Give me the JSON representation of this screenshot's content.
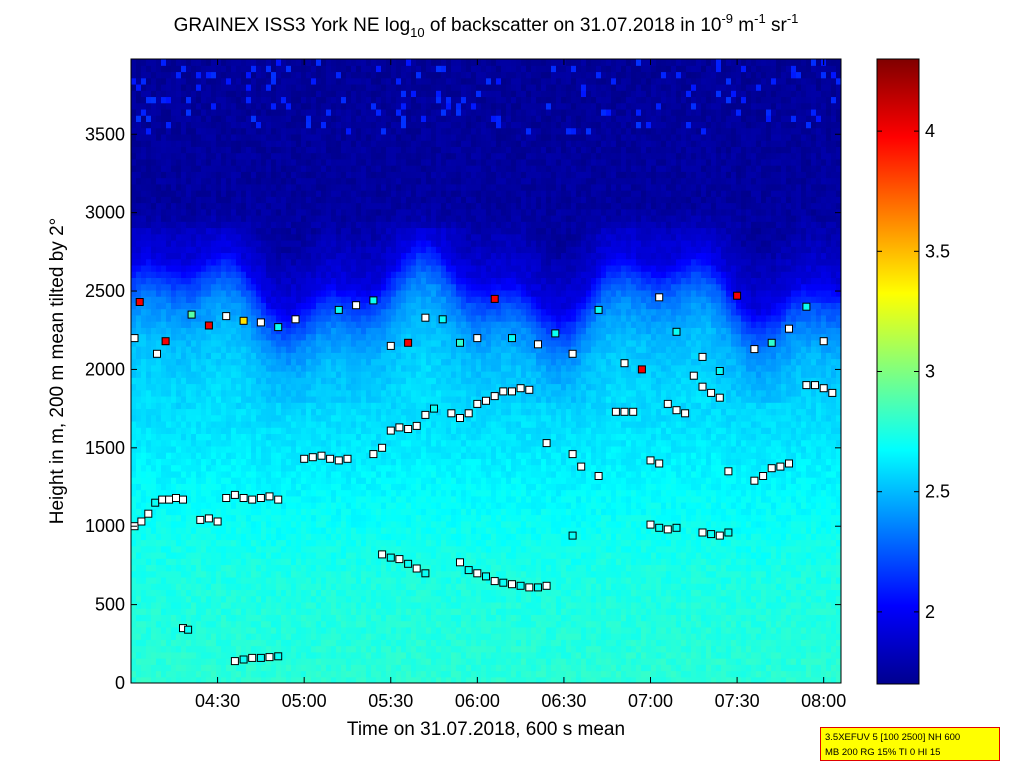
{
  "chart_data": {
    "type": "heatmap",
    "title": {
      "prefix": "GRAINEX ISS3 York NE log",
      "log_base": "10",
      "middle": " of backscatter on 31.07.2018 in 10",
      "exp1": "-9",
      "unit_m": " m",
      "exp2": "-1",
      "unit_sr": " sr",
      "exp3": "-1"
    },
    "xlabel": "Time on 31.07.2018, 600 s mean",
    "ylabel": "Height in m, 200 m mean tilted by 2°",
    "x_axis": {
      "range_hours": [
        4.0,
        8.1
      ],
      "ticks": [
        {
          "value": 4.5,
          "label": "04:30"
        },
        {
          "value": 5.0,
          "label": "05:00"
        },
        {
          "value": 5.5,
          "label": "05:30"
        },
        {
          "value": 6.0,
          "label": "06:00"
        },
        {
          "value": 6.5,
          "label": "06:30"
        },
        {
          "value": 7.0,
          "label": "07:00"
        },
        {
          "value": 7.5,
          "label": "07:30"
        },
        {
          "value": 8.0,
          "label": "08:00"
        }
      ]
    },
    "y_axis": {
      "range": [
        0,
        3980
      ],
      "ticks": [
        {
          "value": 0,
          "label": "0"
        },
        {
          "value": 500,
          "label": "500"
        },
        {
          "value": 1000,
          "label": "1000"
        },
        {
          "value": 1500,
          "label": "1500"
        },
        {
          "value": 2000,
          "label": "2000"
        },
        {
          "value": 2500,
          "label": "2500"
        },
        {
          "value": 3000,
          "label": "3000"
        },
        {
          "value": 3500,
          "label": "3500"
        }
      ]
    },
    "colorbar": {
      "range": [
        1.7,
        4.3
      ],
      "colormap": "jet",
      "ticks": [
        {
          "value": 2.0,
          "label": "2"
        },
        {
          "value": 2.5,
          "label": "2.5"
        },
        {
          "value": 3.0,
          "label": "3"
        },
        {
          "value": 3.5,
          "label": "3.5"
        },
        {
          "value": 4.0,
          "label": "4"
        }
      ]
    },
    "field_profile": {
      "heights_m": [
        0,
        300,
        700,
        1000,
        1400,
        1800,
        2100,
        2300,
        2450,
        2600,
        3000,
        3980
      ],
      "log_backscatter": [
        2.78,
        2.76,
        2.74,
        2.7,
        2.64,
        2.57,
        2.5,
        2.38,
        2.2,
        1.95,
        1.78,
        1.76
      ]
    },
    "layer_markers": {
      "time_hours": [
        4.02,
        4.06,
        4.1,
        4.14,
        4.18,
        4.22,
        4.26,
        4.3,
        4.4,
        4.45,
        4.5,
        4.55,
        4.6,
        4.65,
        4.7,
        4.75,
        4.8,
        4.85,
        5.0,
        5.05,
        5.1,
        5.15,
        5.2,
        5.25,
        5.4,
        5.45,
        5.5,
        5.55,
        5.6,
        5.65,
        5.7,
        5.75,
        5.85,
        5.9,
        5.95,
        6.0,
        6.05,
        6.1,
        6.15,
        6.2,
        6.25,
        6.3,
        6.4,
        6.55,
        6.6,
        6.7,
        6.8,
        6.85,
        6.9,
        7.0,
        7.05,
        7.1,
        7.15,
        7.2,
        7.25,
        7.3,
        7.35,
        7.4,
        7.45,
        7.6,
        7.65,
        7.7,
        7.75,
        7.8,
        7.9,
        7.95,
        8.0,
        8.05
      ],
      "height_m": [
        1000,
        1030,
        1080,
        1150,
        1170,
        1170,
        1180,
        1170,
        1040,
        1050,
        1030,
        1180,
        1200,
        1180,
        1170,
        1180,
        1190,
        1170,
        1430,
        1440,
        1450,
        1430,
        1420,
        1430,
        1460,
        1500,
        1610,
        1630,
        1620,
        1640,
        1710,
        1750,
        1720,
        1690,
        1720,
        1780,
        1800,
        1830,
        1860,
        1860,
        1880,
        1870,
        1530,
        1460,
        1380,
        1320,
        1730,
        1730,
        1730,
        1420,
        1400,
        1780,
        1740,
        1720,
        1960,
        1890,
        1850,
        1820,
        1350,
        1290,
        1320,
        1370,
        1380,
        1400,
        1900,
        1900,
        1880,
        1850
      ],
      "color_level": [
        2.5,
        2.6,
        2.5,
        2.7,
        2.5,
        2.6,
        2.5,
        2.6,
        2.6,
        2.5,
        2.6,
        2.5,
        2.6,
        2.5,
        2.5,
        2.6,
        2.5,
        2.6,
        2.6,
        2.5,
        2.6,
        2.5,
        2.6,
        2.5,
        2.5,
        2.6,
        2.5,
        2.6,
        2.5,
        2.6,
        2.5,
        2.7,
        2.6,
        2.5,
        2.6,
        2.6,
        2.5,
        2.6,
        2.5,
        2.6,
        2.5,
        2.6,
        2.5,
        2.6,
        2.5,
        2.6,
        2.5,
        2.6,
        2.5,
        2.6,
        2.5,
        2.6,
        2.5,
        2.6,
        2.5,
        2.6,
        2.5,
        2.6,
        2.5,
        2.6,
        2.5,
        2.6,
        2.5,
        2.6,
        2.5,
        2.6,
        2.5,
        2.6
      ]
    },
    "top_markers": {
      "time_hours": [
        4.02,
        4.05,
        4.15,
        4.2,
        4.35,
        4.45,
        4.55,
        4.65,
        4.75,
        4.85,
        4.95,
        5.2,
        5.3,
        5.4,
        5.5,
        5.6,
        5.7,
        5.8,
        5.9,
        6.0,
        6.1,
        6.2,
        6.35,
        6.45,
        6.55,
        6.7,
        6.85,
        6.95,
        7.05,
        7.15,
        7.3,
        7.4,
        7.5,
        7.6,
        7.7,
        7.8,
        7.9,
        8.0
      ],
      "height_m": [
        2200,
        2430,
        2100,
        2180,
        2350,
        2280,
        2340,
        2310,
        2300,
        2270,
        2320,
        2380,
        2410,
        2440,
        2150,
        2170,
        2330,
        2320,
        2170,
        2200,
        2450,
        2200,
        2160,
        2230,
        2100,
        2380,
        2040,
        2000,
        2460,
        2240,
        2080,
        1990,
        2470,
        2130,
        2170,
        2260,
        2400,
        2180
      ],
      "color_level": [
        2.6,
        4.0,
        2.6,
        4.0,
        2.9,
        4.0,
        2.6,
        3.4,
        2.6,
        2.7,
        2.6,
        2.7,
        2.6,
        2.7,
        2.6,
        4.0,
        2.6,
        2.7,
        2.8,
        2.6,
        4.0,
        2.7,
        2.6,
        2.7,
        2.6,
        2.7,
        2.6,
        4.0,
        2.6,
        2.7,
        2.6,
        2.7,
        4.0,
        2.6,
        2.8,
        2.6,
        2.7,
        2.6
      ]
    },
    "low_markers": {
      "time_hours": [
        4.3,
        4.33,
        4.6,
        4.65,
        4.7,
        4.75,
        4.8,
        4.85,
        5.45,
        5.5,
        5.55,
        5.6,
        5.65,
        5.7,
        5.9,
        5.95,
        6.0,
        6.05,
        6.1,
        6.15,
        6.2,
        6.25,
        6.3,
        6.35,
        6.4,
        6.55,
        7.0,
        7.05,
        7.1,
        7.15,
        7.3,
        7.35,
        7.4,
        7.45
      ],
      "height_m": [
        350,
        340,
        140,
        150,
        160,
        160,
        165,
        170,
        820,
        800,
        790,
        760,
        730,
        700,
        770,
        720,
        700,
        680,
        650,
        640,
        630,
        620,
        610,
        610,
        620,
        940,
        1010,
        990,
        980,
        990,
        960,
        950,
        940,
        960
      ],
      "color_level": [
        2.6,
        2.7,
        2.6,
        2.7,
        2.6,
        2.7,
        2.6,
        2.7,
        2.6,
        2.7,
        2.6,
        2.7,
        2.6,
        2.7,
        2.6,
        2.7,
        2.6,
        2.7,
        2.6,
        2.7,
        2.6,
        2.7,
        2.6,
        2.7,
        2.6,
        2.7,
        2.6,
        2.7,
        2.6,
        2.7,
        2.6,
        2.7,
        2.6,
        2.7
      ]
    }
  },
  "info_box": {
    "line1": "3.5XEFUV 5 [100 2500] NH 600",
    "line2": "MB 200 RG 15% TI 0 HI 15"
  },
  "colors": {
    "info_box_fill": "#ffff00",
    "info_box_border": "#e00000",
    "marker_edge": "#000000",
    "marker_default": "#ffffff"
  }
}
